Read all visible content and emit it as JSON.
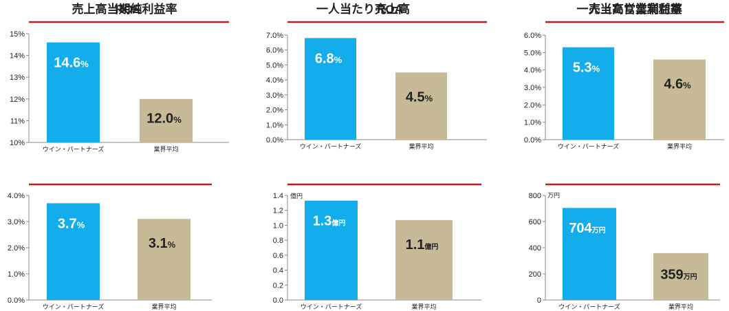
{
  "colors": {
    "accent_line": "#c41a1a",
    "bar_primary": "#12adea",
    "bar_secondary": "#c6bb96",
    "axis": "#888888"
  },
  "chart_data": [
    {
      "type": "bar",
      "title": "ROE",
      "categories": [
        "ウイン・パートナーズ",
        "業界平均"
      ],
      "values": [
        14.6,
        12.0
      ],
      "value_labels": [
        {
          "num": "14.6",
          "unit": "%"
        },
        {
          "num": "12.0",
          "unit": "%"
        }
      ],
      "ylim": [
        10,
        15
      ],
      "yticks": [
        "10%",
        "11%",
        "12%",
        "13%",
        "14%",
        "15%"
      ],
      "y_unit_label": ""
    },
    {
      "type": "bar",
      "title": "ROA",
      "categories": [
        "ウイン・パートナーズ",
        "業界平均"
      ],
      "values": [
        6.8,
        4.5
      ],
      "value_labels": [
        {
          "num": "6.8",
          "unit": "%"
        },
        {
          "num": "4.5",
          "unit": "%"
        }
      ],
      "ylim": [
        0,
        7
      ],
      "yticks": [
        "0.0%",
        "1.0%",
        "2.0%",
        "3.0%",
        "4.0%",
        "5.0%",
        "6.0%",
        "7.0%"
      ],
      "y_unit_label": ""
    },
    {
      "type": "bar",
      "title": "売上高営業利益率",
      "categories": [
        "ウイン・パートナーズ",
        "業界平均"
      ],
      "values": [
        5.3,
        4.6
      ],
      "value_labels": [
        {
          "num": "5.3",
          "unit": "%"
        },
        {
          "num": "4.6",
          "unit": "%"
        }
      ],
      "ylim": [
        0,
        6
      ],
      "yticks": [
        "0.0%",
        "1.0%",
        "2.0%",
        "3.0%",
        "4.0%",
        "5.0%",
        "6.0%"
      ],
      "y_unit_label": ""
    },
    {
      "type": "bar",
      "title": "売上高当期純利益率",
      "categories": [
        "ウイン・パートナーズ",
        "業界平均"
      ],
      "values": [
        3.7,
        3.1
      ],
      "value_labels": [
        {
          "num": "3.7",
          "unit": "%"
        },
        {
          "num": "3.1",
          "unit": "%"
        }
      ],
      "ylim": [
        0,
        4
      ],
      "yticks": [
        "0.0%",
        "1.0%",
        "2.0%",
        "3.0%",
        "4.0%"
      ],
      "y_unit_label": ""
    },
    {
      "type": "bar",
      "title": "一人当たり売上高",
      "categories": [
        "ウイン・パートナーズ",
        "業界平均"
      ],
      "values": [
        1.33,
        1.07
      ],
      "value_labels": [
        {
          "num": "1.3",
          "unit": "億円"
        },
        {
          "num": "1.1",
          "unit": "億円"
        }
      ],
      "ylim": [
        0,
        1.4
      ],
      "yticks": [
        "0.0",
        "0.2",
        "0.4",
        "0.6",
        "0.8",
        "1.0",
        "1.2",
        "1.4"
      ],
      "y_unit_label": "億円"
    },
    {
      "type": "bar",
      "title": "一人当たり営業利益",
      "categories": [
        "ウイン・パートナーズ",
        "業界平均"
      ],
      "values": [
        704,
        359
      ],
      "value_labels": [
        {
          "num": "704",
          "unit": "万円"
        },
        {
          "num": "359",
          "unit": "万円"
        }
      ],
      "ylim": [
        0,
        800
      ],
      "yticks": [
        "0",
        "200",
        "400",
        "600",
        "800"
      ],
      "y_unit_label": "万円"
    }
  ]
}
